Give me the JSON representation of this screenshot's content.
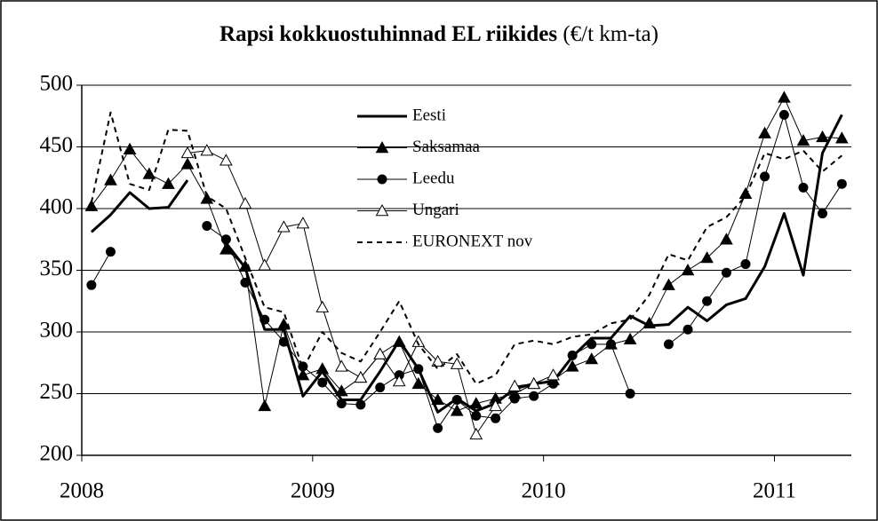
{
  "chart_data": {
    "type": "line",
    "title": "Rapsi kokkuostuhinnad EL riikides",
    "title_unit": "(€/t km-ta)",
    "x": [
      2008.042,
      2008.125,
      2008.208,
      2008.292,
      2008.375,
      2008.458,
      2008.542,
      2008.625,
      2008.708,
      2008.792,
      2008.875,
      2008.958,
      2009.042,
      2009.125,
      2009.208,
      2009.292,
      2009.375,
      2009.458,
      2009.542,
      2009.625,
      2009.708,
      2009.792,
      2009.875,
      2009.958,
      2010.042,
      2010.125,
      2010.208,
      2010.292,
      2010.375,
      2010.458,
      2010.542,
      2010.625,
      2010.708,
      2010.792,
      2010.875,
      2010.958,
      2011.042,
      2011.125,
      2011.208,
      2011.292
    ],
    "xlim": [
      2008,
      2011.333
    ],
    "xticks": [
      2008,
      2009,
      2010,
      2011
    ],
    "ylim": [
      200,
      500
    ],
    "yticks": [
      200,
      250,
      300,
      350,
      400,
      450,
      500
    ],
    "grid": true,
    "legend": "top",
    "series": [
      {
        "name": "Eesti",
        "color": "#000000",
        "marker": "none",
        "dash": false,
        "width": 3,
        "values": [
          381,
          395,
          413,
          400,
          401,
          423,
          null,
          372,
          352,
          302,
          302,
          248,
          268,
          245,
          245,
          268,
          293,
          270,
          235,
          246,
          236,
          242,
          254,
          258,
          260,
          280,
          295,
          295,
          313,
          305,
          306,
          320,
          309,
          322,
          327,
          353,
          396,
          346,
          445,
          476
        ]
      },
      {
        "name": "Saksamaa",
        "color": "#000000",
        "marker": "triangle",
        "dash": false,
        "width": 1,
        "values": [
          402,
          423,
          448,
          428,
          420,
          436,
          408,
          367,
          353,
          240,
          306,
          265,
          270,
          252,
          263,
          282,
          292,
          258,
          245,
          236,
          242,
          246,
          250,
          258,
          261,
          272,
          278,
          290,
          294,
          307,
          338,
          350,
          360,
          375,
          412,
          461,
          490,
          455,
          458,
          457
        ]
      },
      {
        "name": "Leedu",
        "color": "#000000",
        "marker": "circle",
        "dash": false,
        "width": 1,
        "values": [
          338,
          365,
          null,
          null,
          null,
          null,
          386,
          375,
          340,
          310,
          292,
          272,
          259,
          242,
          241,
          255,
          265,
          270,
          222,
          245,
          232,
          230,
          246,
          248,
          258,
          281,
          290,
          290,
          250,
          null,
          290,
          302,
          325,
          348,
          355,
          426,
          476,
          417,
          396,
          420
        ]
      },
      {
        "name": "Ungari",
        "color": "#000000",
        "marker": "triangle-open",
        "dash": false,
        "width": 1,
        "values": [
          null,
          null,
          null,
          null,
          null,
          445,
          447,
          439,
          404,
          354,
          385,
          388,
          320,
          272,
          263,
          282,
          260,
          292,
          276,
          274,
          217,
          240,
          256,
          258,
          265,
          null,
          null,
          null,
          null,
          null,
          null,
          null,
          null,
          null,
          null,
          null,
          null,
          null,
          null,
          null
        ]
      },
      {
        "name": "EURONEXT nov",
        "color": "#000000",
        "marker": "none",
        "dash": true,
        "width": 2,
        "values": [
          405,
          478,
          420,
          415,
          464,
          463,
          410,
          400,
          360,
          320,
          316,
          270,
          300,
          283,
          276,
          300,
          325,
          290,
          270,
          282,
          258,
          265,
          290,
          293,
          290,
          296,
          298,
          307,
          310,
          330,
          363,
          358,
          385,
          393,
          410,
          445,
          440,
          447,
          430,
          443
        ]
      }
    ]
  }
}
